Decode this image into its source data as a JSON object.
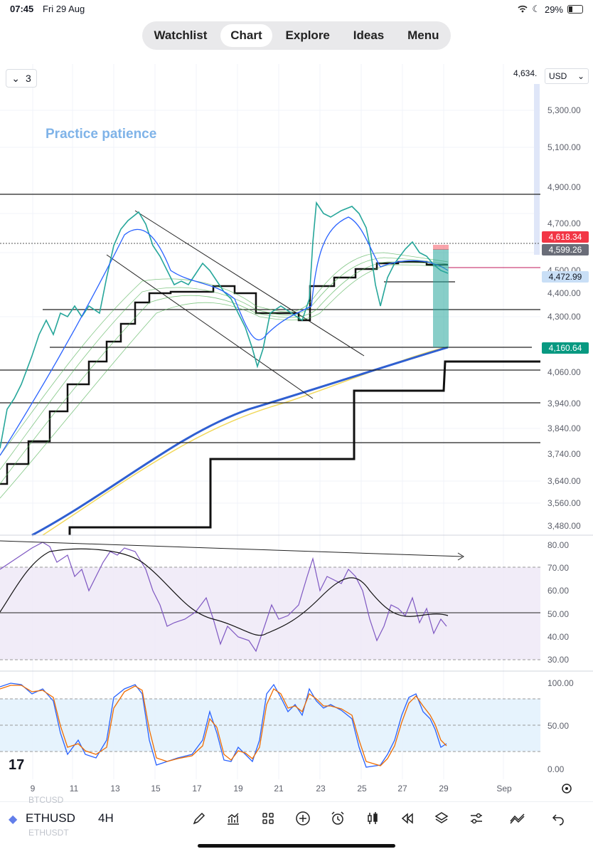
{
  "status": {
    "time": "07:45",
    "date": "Fri 29 Aug",
    "battery": "29%"
  },
  "nav": {
    "tabs": [
      "Watchlist",
      "Chart",
      "Explore",
      "Ideas",
      "Menu"
    ],
    "active": "Chart"
  },
  "chart": {
    "collapse_count": "3",
    "currency": "USD",
    "top_price": "4,634.",
    "annotation": "Practice patience",
    "price_labels": [
      "5,300.00",
      "5,100.00",
      "4,900.00",
      "4,700.00",
      "4,500.00",
      "4,400.00",
      "4,300.00",
      "4,060.00",
      "3,940.00",
      "3,840.00",
      "3,740.00",
      "3,640.00",
      "3,560.00",
      "3,480.00"
    ],
    "price_tags": [
      {
        "label": "4,618.34",
        "color": "#f23645"
      },
      {
        "label": "4,599.26",
        "color": "#6a6d78"
      },
      {
        "label": "4,472.99",
        "color": "#c9dff6"
      },
      {
        "label": "4,160.64",
        "color": "#089981"
      }
    ],
    "rsi_labels": [
      "80.00",
      "70.00",
      "60.00",
      "50.00",
      "40.00",
      "30.00"
    ],
    "stoch_labels": [
      "100.00",
      "50.00",
      "0.00"
    ],
    "x_labels": [
      "9",
      "11",
      "13",
      "15",
      "17",
      "19",
      "21",
      "23",
      "25",
      "27",
      "29",
      "Sep"
    ],
    "logo": "17"
  },
  "bottom": {
    "symbol": "ETHUSD",
    "timeframe": "4H",
    "ghost_above": "BTCUSD",
    "ghost_below": "ETHUSDT",
    "tools": [
      "pen-icon",
      "indicators-icon",
      "grid-icon",
      "add-icon",
      "alarm-icon",
      "candles-icon",
      "replay-icon",
      "layers-icon",
      "settings-sliders-icon",
      "compare-icon",
      "undo-icon"
    ]
  },
  "colors": {
    "accent": "#2962ff",
    "bull": "#26a69a",
    "rsi": "#7e57c2"
  }
}
